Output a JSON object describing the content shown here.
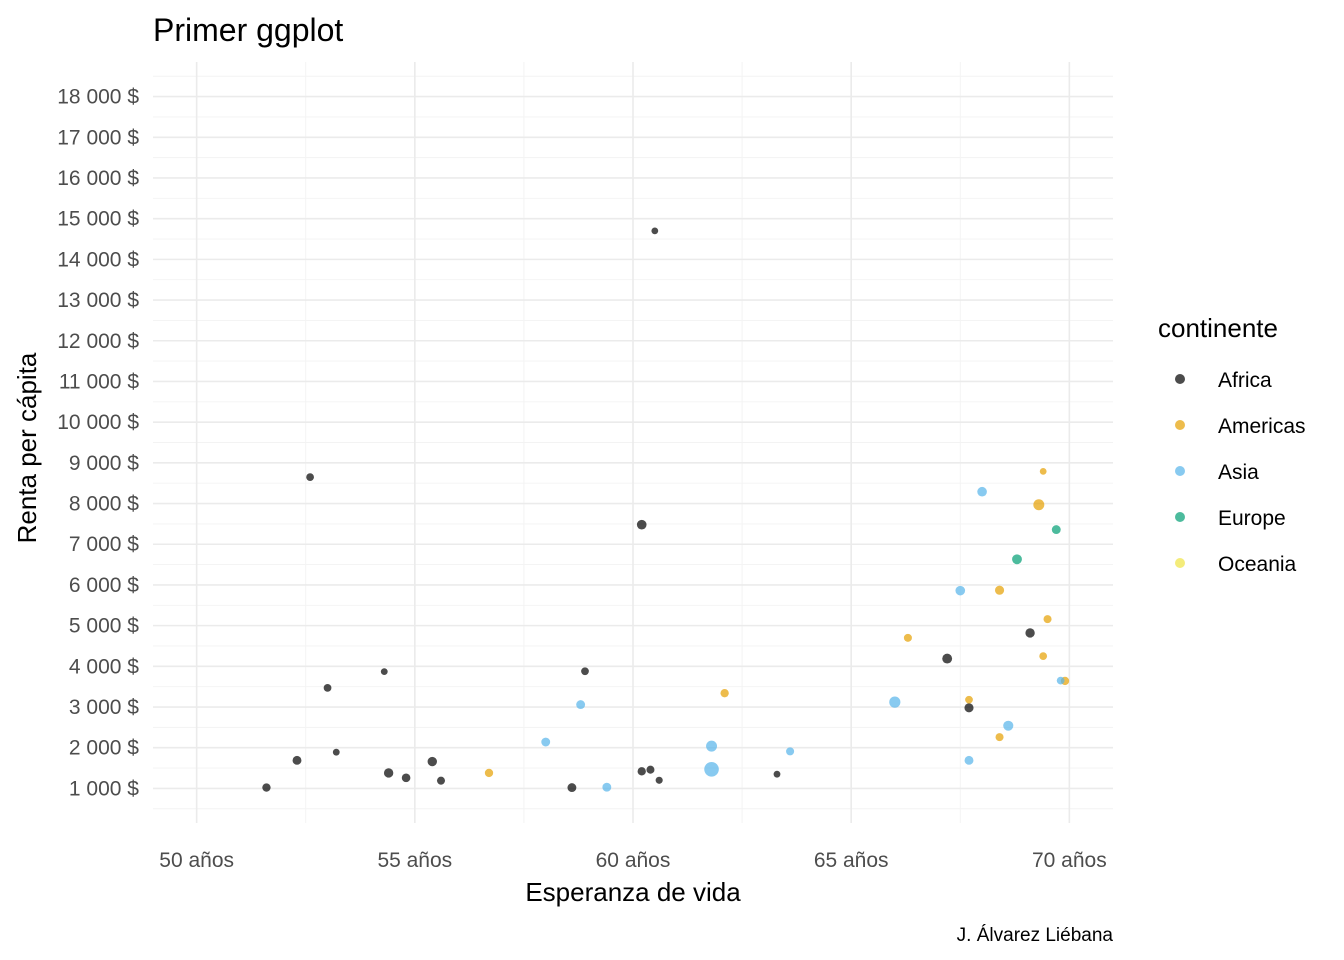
{
  "chart_data": {
    "type": "scatter",
    "title": "Primer ggplot",
    "xlabel": "Esperanza de vida",
    "ylabel": "Renta per cápita",
    "caption": "J. Álvarez Liébana",
    "xlim": [
      49,
      71
    ],
    "ylim": [
      150,
      18850
    ],
    "x_ticks": [
      50,
      55,
      60,
      65,
      70
    ],
    "x_tick_labels": [
      "50 años",
      "55 años",
      "60 años",
      "65 años",
      "70 años"
    ],
    "y_ticks": [
      1000,
      2000,
      3000,
      4000,
      5000,
      6000,
      7000,
      8000,
      9000,
      10000,
      11000,
      12000,
      13000,
      14000,
      15000,
      16000,
      17000,
      18000
    ],
    "y_tick_labels": [
      "1 000 $",
      "2 000 $",
      "3 000 $",
      "4 000 $",
      "5 000 $",
      "6 000 $",
      "7 000 $",
      "8 000 $",
      "9 000 $",
      "10 000 $",
      "11 000 $",
      "12 000 $",
      "13 000 $",
      "14 000 $",
      "15 000 $",
      "16 000 $",
      "17 000 $",
      "18 000 $"
    ],
    "grid": true,
    "legend": {
      "title": "continente",
      "position": "right",
      "entries": [
        {
          "label": "Africa",
          "color": "#000000"
        },
        {
          "label": "Americas",
          "color": "#E69F00"
        },
        {
          "label": "Asia",
          "color": "#56B4E9"
        },
        {
          "label": "Europe",
          "color": "#009E73"
        },
        {
          "label": "Oceania",
          "color": "#F0E442"
        }
      ]
    },
    "point_opacity": 0.7,
    "size_scale": "relative point size (1 = smallest)",
    "series": [
      {
        "name": "Africa",
        "points": [
          {
            "x": 60.5,
            "y": 14700,
            "size": 1
          },
          {
            "x": 52.6,
            "y": 8650,
            "size": 1.3
          },
          {
            "x": 60.2,
            "y": 7480,
            "size": 2
          },
          {
            "x": 53.0,
            "y": 3470,
            "size": 1.3
          },
          {
            "x": 54.3,
            "y": 3870,
            "size": 1
          },
          {
            "x": 58.9,
            "y": 3880,
            "size": 1.3
          },
          {
            "x": 51.6,
            "y": 1020,
            "size": 1.5
          },
          {
            "x": 52.3,
            "y": 1690,
            "size": 1.7
          },
          {
            "x": 53.2,
            "y": 1890,
            "size": 1
          },
          {
            "x": 54.4,
            "y": 1380,
            "size": 1.9
          },
          {
            "x": 54.8,
            "y": 1260,
            "size": 1.6
          },
          {
            "x": 55.4,
            "y": 1660,
            "size": 1.9
          },
          {
            "x": 55.6,
            "y": 1190,
            "size": 1.4
          },
          {
            "x": 58.6,
            "y": 1020,
            "size": 1.7
          },
          {
            "x": 60.2,
            "y": 1420,
            "size": 1.5
          },
          {
            "x": 60.4,
            "y": 1460,
            "size": 1.4
          },
          {
            "x": 60.6,
            "y": 1200,
            "size": 1.1
          },
          {
            "x": 63.3,
            "y": 1350,
            "size": 1
          },
          {
            "x": 67.2,
            "y": 4190,
            "size": 2.1
          },
          {
            "x": 69.1,
            "y": 4820,
            "size": 1.9
          },
          {
            "x": 67.7,
            "y": 2980,
            "size": 1.8
          }
        ]
      },
      {
        "name": "Americas",
        "points": [
          {
            "x": 69.4,
            "y": 8790,
            "size": 1
          },
          {
            "x": 69.3,
            "y": 7970,
            "size": 2.6
          },
          {
            "x": 68.4,
            "y": 5870,
            "size": 1.8
          },
          {
            "x": 69.5,
            "y": 5160,
            "size": 1.4
          },
          {
            "x": 66.3,
            "y": 4700,
            "size": 1.4
          },
          {
            "x": 69.4,
            "y": 4250,
            "size": 1.3
          },
          {
            "x": 69.9,
            "y": 3640,
            "size": 1.5
          },
          {
            "x": 67.7,
            "y": 3180,
            "size": 1.3
          },
          {
            "x": 62.1,
            "y": 3340,
            "size": 1.5
          },
          {
            "x": 68.4,
            "y": 2260,
            "size": 1.4
          },
          {
            "x": 56.7,
            "y": 1380,
            "size": 1.5
          }
        ]
      },
      {
        "name": "Asia",
        "points": [
          {
            "x": 68.0,
            "y": 8290,
            "size": 2
          },
          {
            "x": 67.5,
            "y": 5860,
            "size": 2
          },
          {
            "x": 69.8,
            "y": 3650,
            "size": 1.3
          },
          {
            "x": 66.0,
            "y": 3120,
            "size": 2.7
          },
          {
            "x": 68.6,
            "y": 2540,
            "size": 2.2
          },
          {
            "x": 67.7,
            "y": 1690,
            "size": 1.7
          },
          {
            "x": 58.8,
            "y": 3060,
            "size": 1.7
          },
          {
            "x": 58.0,
            "y": 2140,
            "size": 1.7
          },
          {
            "x": 61.8,
            "y": 2040,
            "size": 2.6
          },
          {
            "x": 63.6,
            "y": 1910,
            "size": 1.4
          },
          {
            "x": 61.8,
            "y": 1470,
            "size": 4.6
          },
          {
            "x": 59.4,
            "y": 1030,
            "size": 1.7
          }
        ]
      },
      {
        "name": "Europe",
        "points": [
          {
            "x": 68.8,
            "y": 6630,
            "size": 2.1
          },
          {
            "x": 69.7,
            "y": 7360,
            "size": 1.7
          }
        ]
      },
      {
        "name": "Oceania",
        "points": []
      }
    ]
  }
}
